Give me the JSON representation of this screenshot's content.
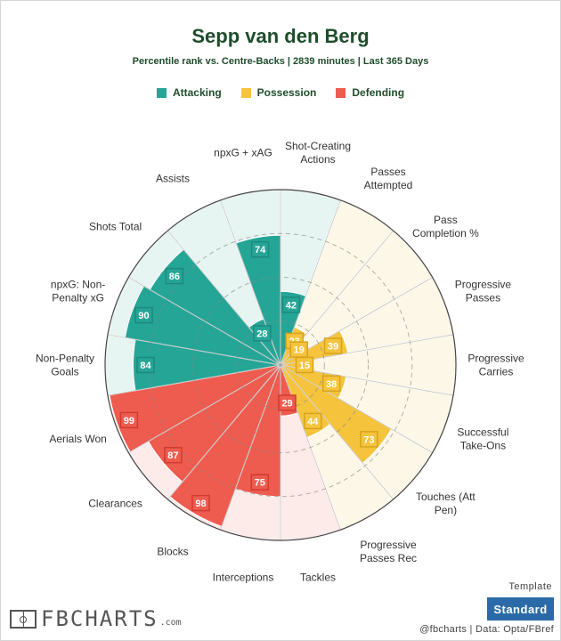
{
  "header": {
    "title": "Sepp van den Berg",
    "subtitle": "Percentile rank vs. Centre-Backs | 2839 minutes | Last 365 Days"
  },
  "legend": [
    {
      "label": "Attacking",
      "color": "#25a596"
    },
    {
      "label": "Possession",
      "color": "#f5c43c"
    },
    {
      "label": "Defending",
      "color": "#ee5b4f"
    }
  ],
  "chart_data": {
    "type": "polar-bar",
    "range": [
      0,
      100
    ],
    "grid": true,
    "categories": [
      {
        "label": [
          "Shot-Creating",
          "Actions"
        ],
        "value": 42,
        "group": "Attacking"
      },
      {
        "label": [
          "Passes",
          "Attempted"
        ],
        "value": 23,
        "group": "Possession"
      },
      {
        "label": [
          "Pass",
          "Completion %"
        ],
        "value": 19,
        "group": "Possession"
      },
      {
        "label": [
          "Progressive",
          "Passes"
        ],
        "value": 39,
        "group": "Possession"
      },
      {
        "label": [
          "Progressive",
          "Carries"
        ],
        "value": 15,
        "group": "Possession"
      },
      {
        "label": [
          "Successful",
          "Take-Ons"
        ],
        "value": 38,
        "group": "Possession"
      },
      {
        "label": [
          "Touches (Att",
          "Pen)"
        ],
        "value": 73,
        "group": "Possession"
      },
      {
        "label": [
          "Progressive",
          "Passes Rec"
        ],
        "value": 44,
        "group": "Possession"
      },
      {
        "label": [
          "Tackles"
        ],
        "value": 29,
        "group": "Defending"
      },
      {
        "label": [
          "Interceptions"
        ],
        "value": 75,
        "group": "Defending"
      },
      {
        "label": [
          "Blocks"
        ],
        "value": 98,
        "group": "Defending"
      },
      {
        "label": [
          "Clearances"
        ],
        "value": 87,
        "group": "Defending"
      },
      {
        "label": [
          "Aerials Won"
        ],
        "value": 99,
        "group": "Defending"
      },
      {
        "label": [
          "Non-Penalty",
          "Goals"
        ],
        "value": 84,
        "group": "Attacking"
      },
      {
        "label": [
          "npxG: Non-",
          "Penalty xG"
        ],
        "value": 90,
        "group": "Attacking"
      },
      {
        "label": [
          "Shots Total"
        ],
        "value": 86,
        "group": "Attacking"
      },
      {
        "label": [
          "Assists"
        ],
        "value": 28,
        "group": "Attacking"
      },
      {
        "label": [
          "npxG + xAG"
        ],
        "value": 74,
        "group": "Attacking"
      }
    ]
  },
  "colors": {
    "Attacking": {
      "bar": "#25a596",
      "bg": "#e6f4f2",
      "box": "#1d8a7e"
    },
    "Possession": {
      "bar": "#f5c43c",
      "bg": "#fdf7e8",
      "box": "#d6a31c"
    },
    "Defending": {
      "bar": "#ee5b4f",
      "bg": "#fcebe9",
      "box": "#d03b30"
    }
  },
  "footer": {
    "template_label": "Template",
    "template_button": "Standard",
    "credit": "@fbcharts | Data: Opta/FBref",
    "brand_name": "FBCHARTS",
    "brand_domain": ".com"
  }
}
